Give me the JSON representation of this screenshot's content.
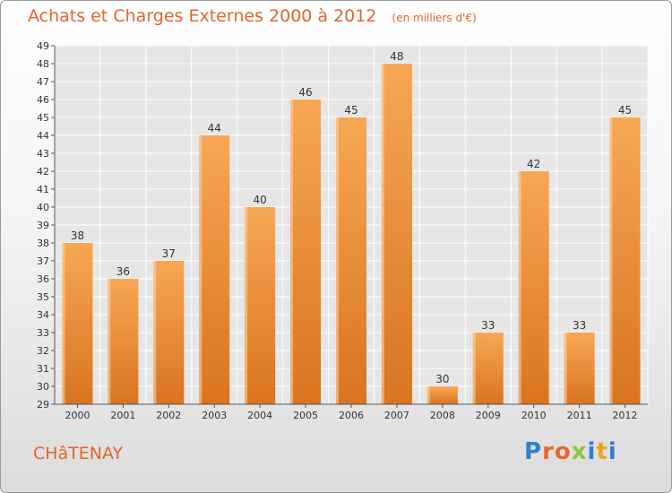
{
  "header": {
    "title": "Achats et Charges Externes 2000 à 2012",
    "unit_note": "(en milliers d'€)"
  },
  "footer": {
    "commune": "CHâTENAY",
    "logo_text": "Proxiti",
    "logo_letters": [
      {
        "char": "P",
        "color": "#2f7fd0"
      },
      {
        "char": "r",
        "color": "#e46b2a"
      },
      {
        "char": "o",
        "color": "#e46b2a"
      },
      {
        "char": "x",
        "color": "#8cc63f"
      },
      {
        "char": "i",
        "color": "#2f7fd0"
      },
      {
        "char": "t",
        "color": "#f2a31b"
      },
      {
        "char": "i",
        "color": "#2f7fd0"
      }
    ]
  },
  "colors": {
    "bar_top": "#f7a755",
    "bar_bottom": "#d9741f",
    "accent": "#e0662a",
    "grid": "#ffffff"
  },
  "chart_data": {
    "type": "bar",
    "title": "Achats et Charges Externes 2000 à 2012",
    "subtitle": "(en milliers d'€)",
    "xlabel": "",
    "ylabel": "",
    "categories": [
      "2000",
      "2001",
      "2002",
      "2003",
      "2004",
      "2005",
      "2006",
      "2007",
      "2008",
      "2009",
      "2010",
      "2011",
      "2012"
    ],
    "values": [
      38,
      36,
      37,
      44,
      40,
      46,
      45,
      48,
      30,
      33,
      42,
      33,
      45
    ],
    "ylim": [
      29,
      49
    ],
    "yticks": [
      29,
      30,
      31,
      32,
      33,
      34,
      35,
      36,
      37,
      38,
      39,
      40,
      41,
      42,
      43,
      44,
      45,
      46,
      47,
      48,
      49
    ],
    "grid": true,
    "data_labels": true
  }
}
